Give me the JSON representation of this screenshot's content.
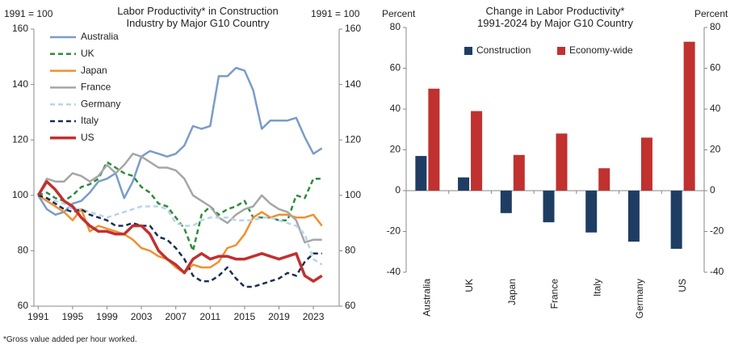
{
  "chart_data": [
    {
      "type": "line",
      "title": "Labor Productivity* in Construction\nIndustry by Major G10 Country",
      "ylabel": "1991 = 100",
      "y2label": "1991 = 100",
      "x": [
        1991,
        1992,
        1993,
        1994,
        1995,
        1996,
        1997,
        1998,
        1999,
        2000,
        2001,
        2002,
        2003,
        2004,
        2005,
        2006,
        2007,
        2008,
        2009,
        2010,
        2011,
        2012,
        2013,
        2014,
        2015,
        2016,
        2017,
        2018,
        2019,
        2020,
        2021,
        2022,
        2023,
        2024
      ],
      "xlim": [
        1990.5,
        2026
      ],
      "xticks": [
        1991,
        1995,
        1999,
        2003,
        2007,
        2011,
        2015,
        2019,
        2023
      ],
      "ylim": [
        60,
        160
      ],
      "yticks": [
        60,
        80,
        100,
        120,
        140,
        160
      ],
      "y2lim": [
        60,
        160
      ],
      "y2ticks": [
        60,
        80,
        100,
        120,
        140,
        160
      ],
      "legend": "upper left",
      "series": [
        {
          "name": "Australia",
          "color": "#7a9cc8",
          "style": "solid",
          "values": [
            100,
            95,
            93,
            94,
            97,
            98,
            101,
            105,
            106,
            108,
            99,
            105,
            114,
            116,
            115,
            114,
            115,
            118,
            125,
            124,
            125,
            143,
            143,
            146,
            145,
            138,
            124,
            127,
            127,
            127,
            128,
            121,
            115,
            117
          ]
        },
        {
          "name": "UK",
          "color": "#2e8b3e",
          "style": "dashed",
          "values": [
            100,
            101,
            99,
            98,
            100,
            103,
            104,
            106,
            112,
            110,
            108,
            107,
            103,
            101,
            97,
            96,
            92,
            88,
            80,
            93,
            96,
            93,
            95,
            96,
            98,
            92,
            92,
            92,
            91,
            91,
            100,
            99,
            106,
            106
          ]
        },
        {
          "name": "Japan",
          "color": "#f0902f",
          "style": "solid",
          "values": [
            100,
            98,
            96,
            94,
            91,
            95,
            87,
            89,
            88,
            87,
            86,
            84,
            81,
            80,
            78,
            77,
            74,
            72,
            75,
            74,
            74,
            76,
            81,
            82,
            86,
            92,
            94,
            92,
            93,
            93,
            92,
            92,
            93,
            89
          ]
        },
        {
          "name": "France",
          "color": "#a6a6a6",
          "style": "solid",
          "values": [
            100,
            106,
            105,
            105,
            108,
            107,
            105,
            107,
            111,
            108,
            111,
            115,
            114,
            112,
            110,
            110,
            109,
            106,
            100,
            98,
            96,
            92,
            90,
            93,
            95,
            96,
            100,
            97,
            95,
            94,
            91,
            83,
            84,
            84
          ]
        },
        {
          "name": "Germany",
          "color": "#b8d4ea",
          "style": "dashed",
          "values": [
            100,
            99,
            98,
            97,
            95,
            95,
            94,
            93,
            92,
            93,
            94,
            95,
            96,
            96,
            96,
            95,
            90,
            89,
            89,
            91,
            92,
            92,
            92,
            91,
            91,
            91,
            92,
            92,
            91,
            90,
            89,
            86,
            77,
            75
          ]
        },
        {
          "name": "Italy",
          "color": "#1a2f52",
          "style": "dashed",
          "values": [
            100,
            99,
            97,
            95,
            94,
            95,
            93,
            92,
            91,
            89,
            89,
            90,
            89,
            89,
            85,
            84,
            81,
            77,
            71,
            69,
            69,
            71,
            74,
            70,
            67,
            67,
            68,
            69,
            70,
            72,
            71,
            76,
            79,
            79
          ]
        },
        {
          "name": "US",
          "color": "#c0312f",
          "style": "thick",
          "values": [
            100,
            105,
            102,
            98,
            96,
            92,
            89,
            87,
            87,
            86,
            86,
            89,
            89,
            86,
            80,
            77,
            75,
            72,
            77,
            79,
            77,
            78,
            78,
            77,
            77,
            78,
            79,
            78,
            77,
            78,
            79,
            71,
            69,
            71
          ]
        }
      ]
    },
    {
      "type": "bar",
      "title": "Change in Labor Productivity*\n1991-2024  by Major G10 Country",
      "ylabel": "Percent",
      "y2label": "Percent",
      "categories": [
        "Australia",
        "UK",
        "Japan",
        "France",
        "Italy",
        "Germany",
        "US"
      ],
      "ylim": [
        -40,
        80
      ],
      "yticks": [
        -40,
        -20,
        0,
        20,
        40,
        60,
        80
      ],
      "y2lim": [
        -40,
        80
      ],
      "y2ticks": [
        -40,
        -20,
        0,
        20,
        40,
        60,
        80
      ],
      "legend": "top",
      "series": [
        {
          "name": "Construction",
          "color": "#1f3d63",
          "values": [
            17,
            6.5,
            -11,
            -15.5,
            -20.5,
            -25,
            -28.5
          ]
        },
        {
          "name": "Economy-wide",
          "color": "#c0312f",
          "values": [
            50,
            39,
            17.5,
            28,
            11,
            26,
            73
          ]
        }
      ]
    }
  ],
  "footnote": "*Gross value added per hour worked."
}
